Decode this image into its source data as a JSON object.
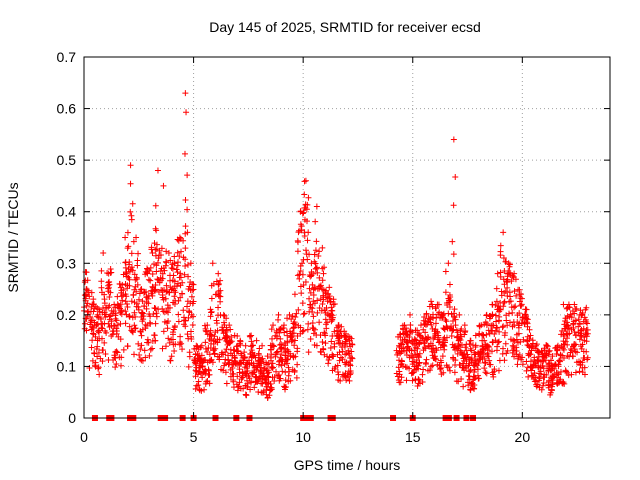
{
  "chart_data": {
    "type": "scatter",
    "title": "Day 145 of 2025, SRMTID for receiver ecsd",
    "xlabel": "GPS time / hours",
    "ylabel": "SRMTID / TECUs",
    "xlim": [
      0,
      24
    ],
    "ylim": [
      0,
      0.7
    ],
    "xticks": [
      0,
      5,
      10,
      15,
      20
    ],
    "xtick_labels": [
      "0",
      "5",
      "10",
      "15",
      "20"
    ],
    "yticks": [
      0,
      0.1,
      0.2,
      0.3,
      0.4,
      0.5,
      0.6,
      0.7
    ],
    "ytick_labels": [
      "0",
      "0.1",
      "0.2",
      "0.3",
      "0.4",
      "0.5",
      "0.6",
      "0.7"
    ],
    "grid": true,
    "marker": "+",
    "series": [
      {
        "name": "SRMTID",
        "color": "#ff0000",
        "envelope_note": "Dense data, approximate envelope (hour, typical, peak)",
        "x": [
          0.0,
          0.25,
          0.5,
          0.75,
          1.0,
          1.25,
          1.5,
          1.75,
          2.0,
          2.25,
          2.5,
          2.75,
          3.0,
          3.25,
          3.5,
          3.75,
          4.0,
          4.25,
          4.5,
          4.75,
          5.0,
          5.25,
          5.5,
          5.75,
          6.0,
          6.25,
          6.5,
          6.75,
          7.0,
          7.25,
          7.5,
          7.75,
          8.0,
          8.25,
          8.5,
          8.75,
          9.0,
          9.25,
          9.5,
          9.75,
          10.0,
          10.25,
          10.5,
          10.75,
          11.0,
          11.25,
          11.5,
          11.75,
          12.0,
          14.25,
          14.5,
          14.75,
          15.0,
          15.25,
          15.5,
          15.75,
          16.0,
          16.25,
          16.5,
          16.75,
          17.0,
          17.25,
          17.5,
          17.75,
          18.0,
          18.25,
          18.5,
          18.75,
          19.0,
          19.25,
          19.5,
          19.75,
          20.0,
          20.25,
          20.5,
          20.75,
          21.0,
          21.25,
          21.5,
          21.75,
          22.0,
          22.25,
          22.5,
          22.75
        ],
        "typical": [
          0.2,
          0.17,
          0.15,
          0.18,
          0.2,
          0.16,
          0.18,
          0.22,
          0.25,
          0.22,
          0.17,
          0.2,
          0.24,
          0.26,
          0.23,
          0.2,
          0.22,
          0.24,
          0.26,
          0.18,
          0.1,
          0.09,
          0.12,
          0.16,
          0.18,
          0.14,
          0.12,
          0.1,
          0.09,
          0.08,
          0.1,
          0.09,
          0.08,
          0.07,
          0.1,
          0.12,
          0.1,
          0.12,
          0.14,
          0.28,
          0.3,
          0.22,
          0.25,
          0.2,
          0.18,
          0.16,
          0.13,
          0.12,
          0.11,
          0.12,
          0.13,
          0.12,
          0.11,
          0.12,
          0.14,
          0.16,
          0.15,
          0.14,
          0.16,
          0.14,
          0.12,
          0.1,
          0.09,
          0.1,
          0.12,
          0.13,
          0.14,
          0.16,
          0.2,
          0.22,
          0.2,
          0.18,
          0.15,
          0.12,
          0.1,
          0.09,
          0.1,
          0.08,
          0.1,
          0.12,
          0.15,
          0.16,
          0.15,
          0.15
        ],
        "peak": [
          0.25,
          0.22,
          0.2,
          0.32,
          0.28,
          0.22,
          0.26,
          0.35,
          0.49,
          0.35,
          0.25,
          0.29,
          0.32,
          0.48,
          0.45,
          0.32,
          0.3,
          0.35,
          0.63,
          0.3,
          0.14,
          0.14,
          0.18,
          0.3,
          0.28,
          0.2,
          0.18,
          0.16,
          0.15,
          0.14,
          0.16,
          0.15,
          0.14,
          0.12,
          0.18,
          0.2,
          0.18,
          0.2,
          0.24,
          0.4,
          0.46,
          0.3,
          0.41,
          0.33,
          0.24,
          0.22,
          0.18,
          0.16,
          0.15,
          0.14,
          0.18,
          0.2,
          0.17,
          0.18,
          0.2,
          0.22,
          0.22,
          0.2,
          0.3,
          0.54,
          0.2,
          0.18,
          0.15,
          0.16,
          0.18,
          0.2,
          0.22,
          0.28,
          0.36,
          0.3,
          0.28,
          0.24,
          0.2,
          0.16,
          0.14,
          0.13,
          0.14,
          0.12,
          0.14,
          0.22,
          0.22,
          0.22,
          0.2,
          0.21
        ],
        "zeros_x": [
          0.5,
          1.15,
          1.25,
          2.1,
          2.25,
          3.5,
          3.7,
          4.5,
          5.0,
          6.0,
          6.95,
          7.55,
          10.0,
          10.25,
          10.35,
          11.25,
          11.35,
          14.1,
          15.0,
          16.5,
          16.65,
          17.0,
          17.45,
          17.75
        ]
      }
    ]
  }
}
